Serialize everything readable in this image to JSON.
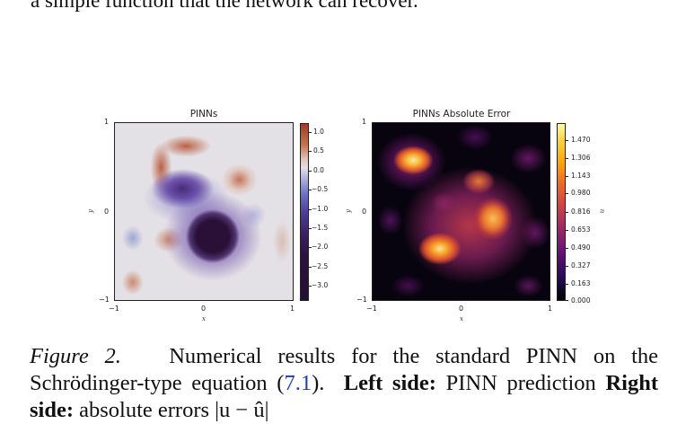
{
  "top_text": "a simple function that the network can recover.",
  "figure": {
    "left_panel": {
      "title": "PINNs",
      "colorbar_ticks": [
        "1.0",
        "0.5",
        "0.0",
        "−0.5",
        "−1.0",
        "−1.5",
        "−2.0",
        "−2.5",
        "−3.0"
      ],
      "colormap": "twilight-shifted",
      "colors": {
        "high": "#b5553a",
        "mid": "#e4e1e6",
        "low": "#2a1036"
      }
    },
    "right_panel": {
      "title": "PINNs Absolute Error",
      "colorbar_ticks": [
        "1.470",
        "1.306",
        "1.143",
        "0.980",
        "0.816",
        "0.653",
        "0.490",
        "0.327",
        "0.163",
        "0.000"
      ],
      "colorbar_label": "u",
      "colormap": "inferno"
    },
    "x_ticks": [
      "−1",
      "0",
      "1"
    ],
    "y_ticks": [
      "1",
      "0",
      "−1"
    ],
    "xlabel": "x",
    "ylabel": "y"
  },
  "caption": {
    "figure_label": "Figure 2.",
    "text_1": "Numerical results for the standard PINN on the Schrödinger-type equation (",
    "ref": "7.1",
    "text_2": ").",
    "bold_1": "Left side:",
    "text_3": "PINN prediction",
    "bold_2": "Right side:",
    "text_4": "absolute errors |u − û|"
  }
}
